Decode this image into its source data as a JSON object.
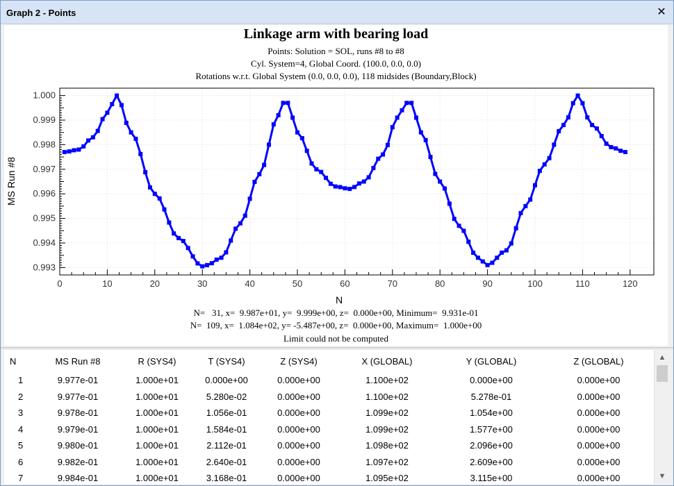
{
  "window": {
    "title": "Graph 2 - Points",
    "close_glyph": "✕"
  },
  "graph": {
    "title": "Linkage arm with bearing load",
    "subtitle1": "Points: Solution = SOL, runs #8 to #8",
    "subtitle2": "Cyl. System=4, Global Coord. (100.0, 0.0, 0.0)",
    "subtitle3": "Rotations w.r.t. Global System (0.0, 0.0, 0.0), 118 midsides (Boundary,Block)",
    "stats_min": "N=   31, x=  9.987e+01, y=  9.999e+00, z=  0.000e+00, Minimum=  9.931e-01",
    "stats_max": "N=  109, x=  1.084e+02, y= -5.487e+00, z=  0.000e+00, Maximum=  1.000e+00",
    "stats_limit": "Limit could not be computed"
  },
  "chart_data": {
    "type": "line",
    "xlabel": "N",
    "ylabel": "MS Run #8",
    "xlim": [
      0,
      125
    ],
    "ylim": [
      0.9927,
      1.0003
    ],
    "x_ticks": [
      0,
      10,
      20,
      30,
      40,
      50,
      60,
      70,
      80,
      90,
      100,
      110,
      120
    ],
    "y_ticks": [
      0.993,
      0.994,
      0.995,
      0.996,
      0.997,
      0.998,
      0.999,
      1.0
    ],
    "y_tick_labels": [
      "0.993",
      "0.994",
      "0.995",
      "0.996",
      "0.997",
      "0.998",
      "0.999",
      "1.000"
    ],
    "color": "#0000ff",
    "marker": "square",
    "series": [
      {
        "name": "MS Run #8",
        "knots": [
          [
            1,
            0.9977
          ],
          [
            4,
            0.9978
          ],
          [
            7,
            0.9983
          ],
          [
            10,
            0.9993
          ],
          [
            12,
            1.0
          ],
          [
            15,
            0.9985
          ],
          [
            20,
            0.996
          ],
          [
            25,
            0.9942
          ],
          [
            30,
            0.99305
          ],
          [
            31,
            0.9931
          ],
          [
            34,
            0.9934
          ],
          [
            38,
            0.9948
          ],
          [
            42,
            0.9968
          ],
          [
            46,
            0.9992
          ],
          [
            47,
            0.9997
          ],
          [
            48,
            0.9997
          ],
          [
            50,
            0.9985
          ],
          [
            54,
            0.997
          ],
          [
            58,
            0.9963
          ],
          [
            61,
            0.9962
          ],
          [
            64,
            0.9965
          ],
          [
            68,
            0.9976
          ],
          [
            71,
            0.9991
          ],
          [
            73,
            0.9997
          ],
          [
            74,
            0.9997
          ],
          [
            76,
            0.9985
          ],
          [
            80,
            0.9965
          ],
          [
            84,
            0.9947
          ],
          [
            88,
            0.9934
          ],
          [
            90,
            0.9931
          ],
          [
            94,
            0.9937
          ],
          [
            98,
            0.9955
          ],
          [
            102,
            0.9972
          ],
          [
            106,
            0.9988
          ],
          [
            109,
            1.0
          ],
          [
            112,
            0.9988
          ],
          [
            116,
            0.9979
          ],
          [
            119,
            0.9977
          ]
        ]
      }
    ]
  },
  "table": {
    "headers": [
      "N",
      "MS Run #8",
      "R (SYS4)",
      "T (SYS4)",
      "Z (SYS4)",
      "X (GLOBAL)",
      "Y (GLOBAL)",
      "Z (GLOBAL)"
    ],
    "rows": [
      [
        "1",
        "9.977e-01",
        "1.000e+01",
        "0.000e+00",
        "0.000e+00",
        "1.100e+02",
        "0.000e+00",
        "0.000e+00"
      ],
      [
        "2",
        "9.977e-01",
        "1.000e+01",
        "5.280e-02",
        "0.000e+00",
        "1.100e+02",
        "5.278e-01",
        "0.000e+00"
      ],
      [
        "3",
        "9.978e-01",
        "1.000e+01",
        "1.056e-01",
        "0.000e+00",
        "1.099e+02",
        "1.054e+00",
        "0.000e+00"
      ],
      [
        "4",
        "9.979e-01",
        "1.000e+01",
        "1.584e-01",
        "0.000e+00",
        "1.099e+02",
        "1.577e+00",
        "0.000e+00"
      ],
      [
        "5",
        "9.980e-01",
        "1.000e+01",
        "2.112e-01",
        "0.000e+00",
        "1.098e+02",
        "2.096e+00",
        "0.000e+00"
      ],
      [
        "6",
        "9.982e-01",
        "1.000e+01",
        "2.640e-01",
        "0.000e+00",
        "1.097e+02",
        "2.609e+00",
        "0.000e+00"
      ],
      [
        "7",
        "9.984e-01",
        "1.000e+01",
        "3.168e-01",
        "0.000e+00",
        "1.095e+02",
        "3.115e+00",
        "0.000e+00"
      ]
    ]
  },
  "scrollbar": {
    "up_glyph": "▲",
    "down_glyph": "▼"
  }
}
